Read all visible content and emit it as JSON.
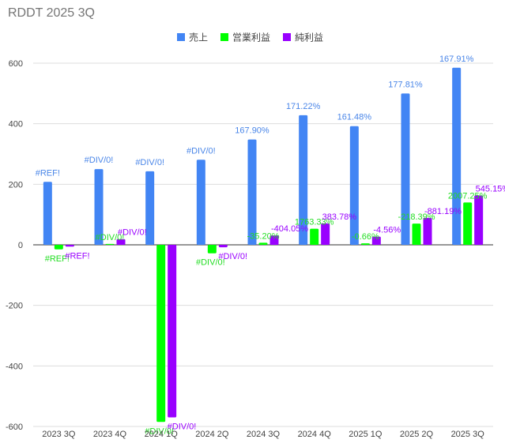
{
  "chart_data": {
    "type": "bar",
    "title": "RDDT 2025 3Q",
    "xlabel": "",
    "ylabel": "",
    "categories": [
      "2023 3Q",
      "2023 4Q",
      "2024 1Q",
      "2024 2Q",
      "2024 3Q",
      "2024 4Q",
      "2025 1Q",
      "2025 2Q",
      "2025 3Q"
    ],
    "ylim": [
      -600,
      650
    ],
    "yticks": [
      -600,
      -400,
      -200,
      0,
      200,
      400,
      600
    ],
    "grid": true,
    "legend_position": "top",
    "series": [
      {
        "name": "売上",
        "color": "#4285f4",
        "label_color": "#4a86e8",
        "values": [
          208,
          250,
          243,
          281,
          348,
          428,
          392,
          500,
          585
        ],
        "labels": [
          "#REF!",
          "#DIV/0!",
          "#DIV/0!",
          "#DIV/0!",
          "167.90%",
          "171.22%",
          "161.48%",
          "177.81%",
          "167.91%"
        ]
      },
      {
        "name": "営業利益",
        "color": "#00ff00",
        "label_color": "#22dd22",
        "values": [
          -15,
          3,
          -585,
          -28,
          7,
          53,
          5,
          70,
          140
        ],
        "labels": [
          "#REF!",
          "#DIV/0!",
          "#DIV/0!",
          "#DIV/0!",
          "-35.20%",
          "1763.33%",
          "-0.66%",
          "-218.39%",
          "2007.25%"
        ]
      },
      {
        "name": "純利益",
        "color": "#9900ff",
        "label_color": "#9900ff",
        "values": [
          -6,
          19,
          -570,
          -8,
          31,
          71,
          27,
          89,
          163
        ],
        "labels": [
          "#REF!",
          "#DIV/0!",
          "#DIV/0!",
          "#DIV/0!",
          "-404.05%",
          "383.78%",
          "-4.56%",
          "-881.19%",
          "545.15%"
        ]
      }
    ]
  }
}
